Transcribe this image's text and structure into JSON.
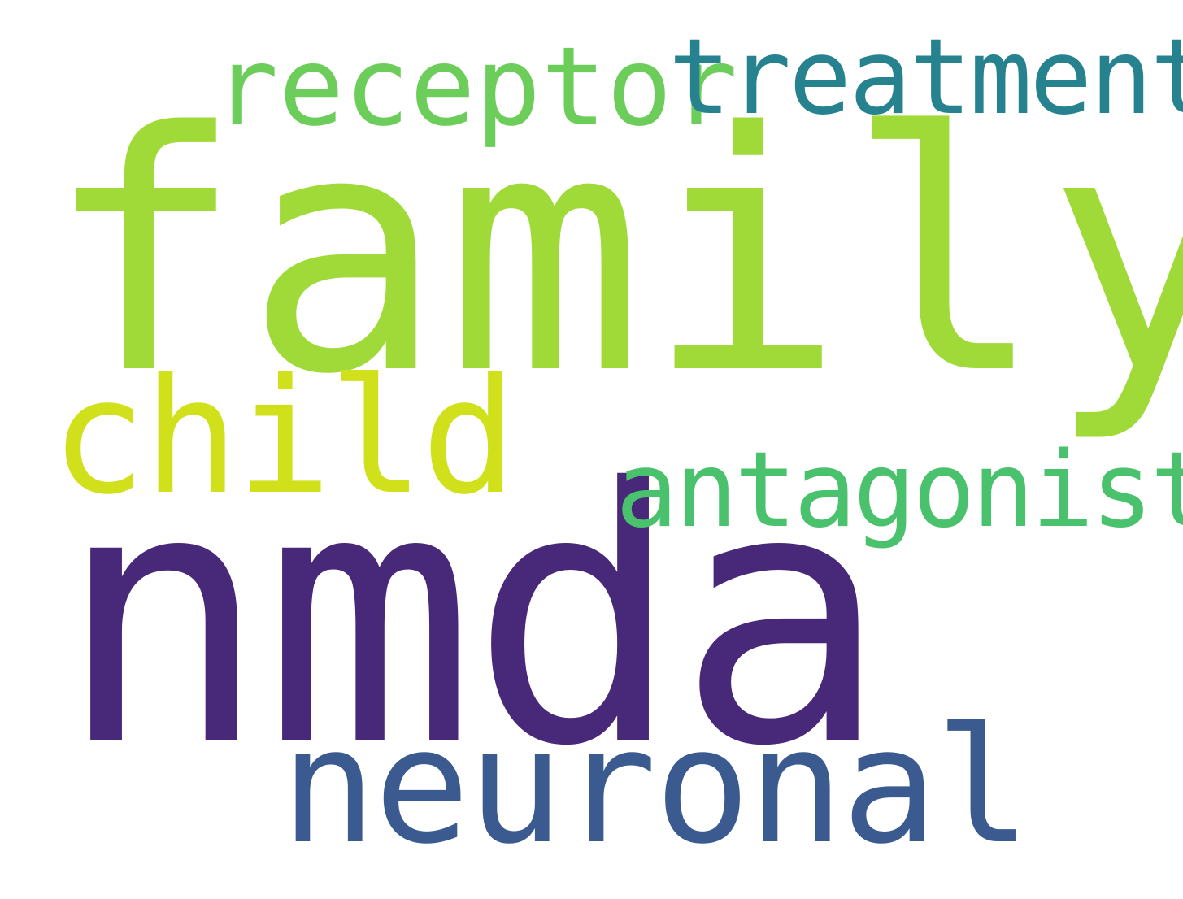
{
  "words": [
    {
      "id": "family",
      "text": "family",
      "color": "#a0da39"
    },
    {
      "id": "nmda",
      "text": "nmda",
      "color": "#482878"
    },
    {
      "id": "receptor",
      "text": "receptor",
      "color": "#6ccd5a"
    },
    {
      "id": "treatment",
      "text": "treatment",
      "color": "#26828e"
    },
    {
      "id": "child",
      "text": "child",
      "color": "#d0e11c"
    },
    {
      "id": "antagonist",
      "text": "antagonist",
      "color": "#4ac16d"
    },
    {
      "id": "neuronal",
      "text": "neuronal",
      "color": "#3b5a8f"
    }
  ]
}
